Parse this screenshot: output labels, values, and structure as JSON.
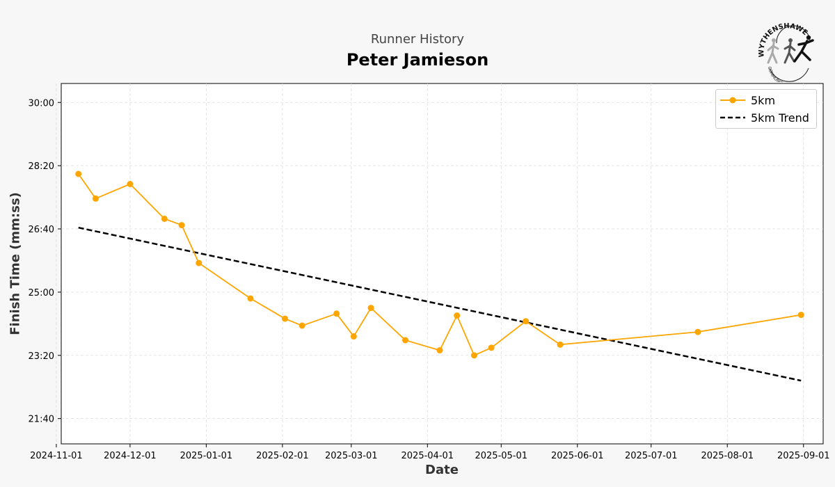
{
  "header": {
    "subtitle": "Runner History",
    "title": "Peter Jamieson"
  },
  "logo": {
    "name": "Wythenshawe Community Run logo",
    "text_top": "WYTHENSHAWE",
    "text_bottom": "COMMUNITY RUN"
  },
  "chart_data": {
    "type": "line",
    "xlabel": "Date",
    "ylabel": "Finish Time (mm:ss)",
    "x_axis_type": "date",
    "y_axis_format": "mm:ss",
    "xlim": [
      "2024-11-03",
      "2025-09-09"
    ],
    "ylim": [
      "21:00",
      "30:30"
    ],
    "x_ticks": [
      "2024-11-01",
      "2024-12-01",
      "2025-01-01",
      "2025-02-01",
      "2025-03-01",
      "2025-04-01",
      "2025-05-01",
      "2025-06-01",
      "2025-07-01",
      "2025-08-01",
      "2025-09-01"
    ],
    "y_ticks": [
      "21:40",
      "23:20",
      "25:00",
      "26:40",
      "28:20",
      "30:00"
    ],
    "grid": true,
    "legend_position": "top-right",
    "colors": {
      "series": "#FFA500",
      "trend": "#000000"
    },
    "series": [
      {
        "name": "5km",
        "style": "solid-line-with-circle-markers",
        "color": "#FFA500",
        "points": [
          {
            "x": "2024-11-10",
            "y": "28:07"
          },
          {
            "x": "2024-11-17",
            "y": "27:28"
          },
          {
            "x": "2024-12-01",
            "y": "27:51"
          },
          {
            "x": "2024-12-15",
            "y": "26:56"
          },
          {
            "x": "2024-12-22",
            "y": "26:46"
          },
          {
            "x": "2024-12-29",
            "y": "25:46"
          },
          {
            "x": "2025-01-19",
            "y": "24:50"
          },
          {
            "x": "2025-02-02",
            "y": "24:18"
          },
          {
            "x": "2025-02-09",
            "y": "24:07"
          },
          {
            "x": "2025-02-23",
            "y": "24:26"
          },
          {
            "x": "2025-03-02",
            "y": "23:50"
          },
          {
            "x": "2025-03-09",
            "y": "24:35"
          },
          {
            "x": "2025-03-23",
            "y": "23:44"
          },
          {
            "x": "2025-04-06",
            "y": "23:28"
          },
          {
            "x": "2025-04-13",
            "y": "24:23"
          },
          {
            "x": "2025-04-20",
            "y": "23:20"
          },
          {
            "x": "2025-04-27",
            "y": "23:32"
          },
          {
            "x": "2025-05-11",
            "y": "24:14"
          },
          {
            "x": "2025-05-25",
            "y": "23:37"
          },
          {
            "x": "2025-07-20",
            "y": "23:57"
          },
          {
            "x": "2025-08-31",
            "y": "24:24"
          }
        ]
      },
      {
        "name": "5km Trend",
        "style": "dashed-line",
        "color": "#000000",
        "points": [
          {
            "x": "2024-11-10",
            "y": "26:42"
          },
          {
            "x": "2025-08-31",
            "y": "22:40"
          }
        ]
      }
    ]
  }
}
